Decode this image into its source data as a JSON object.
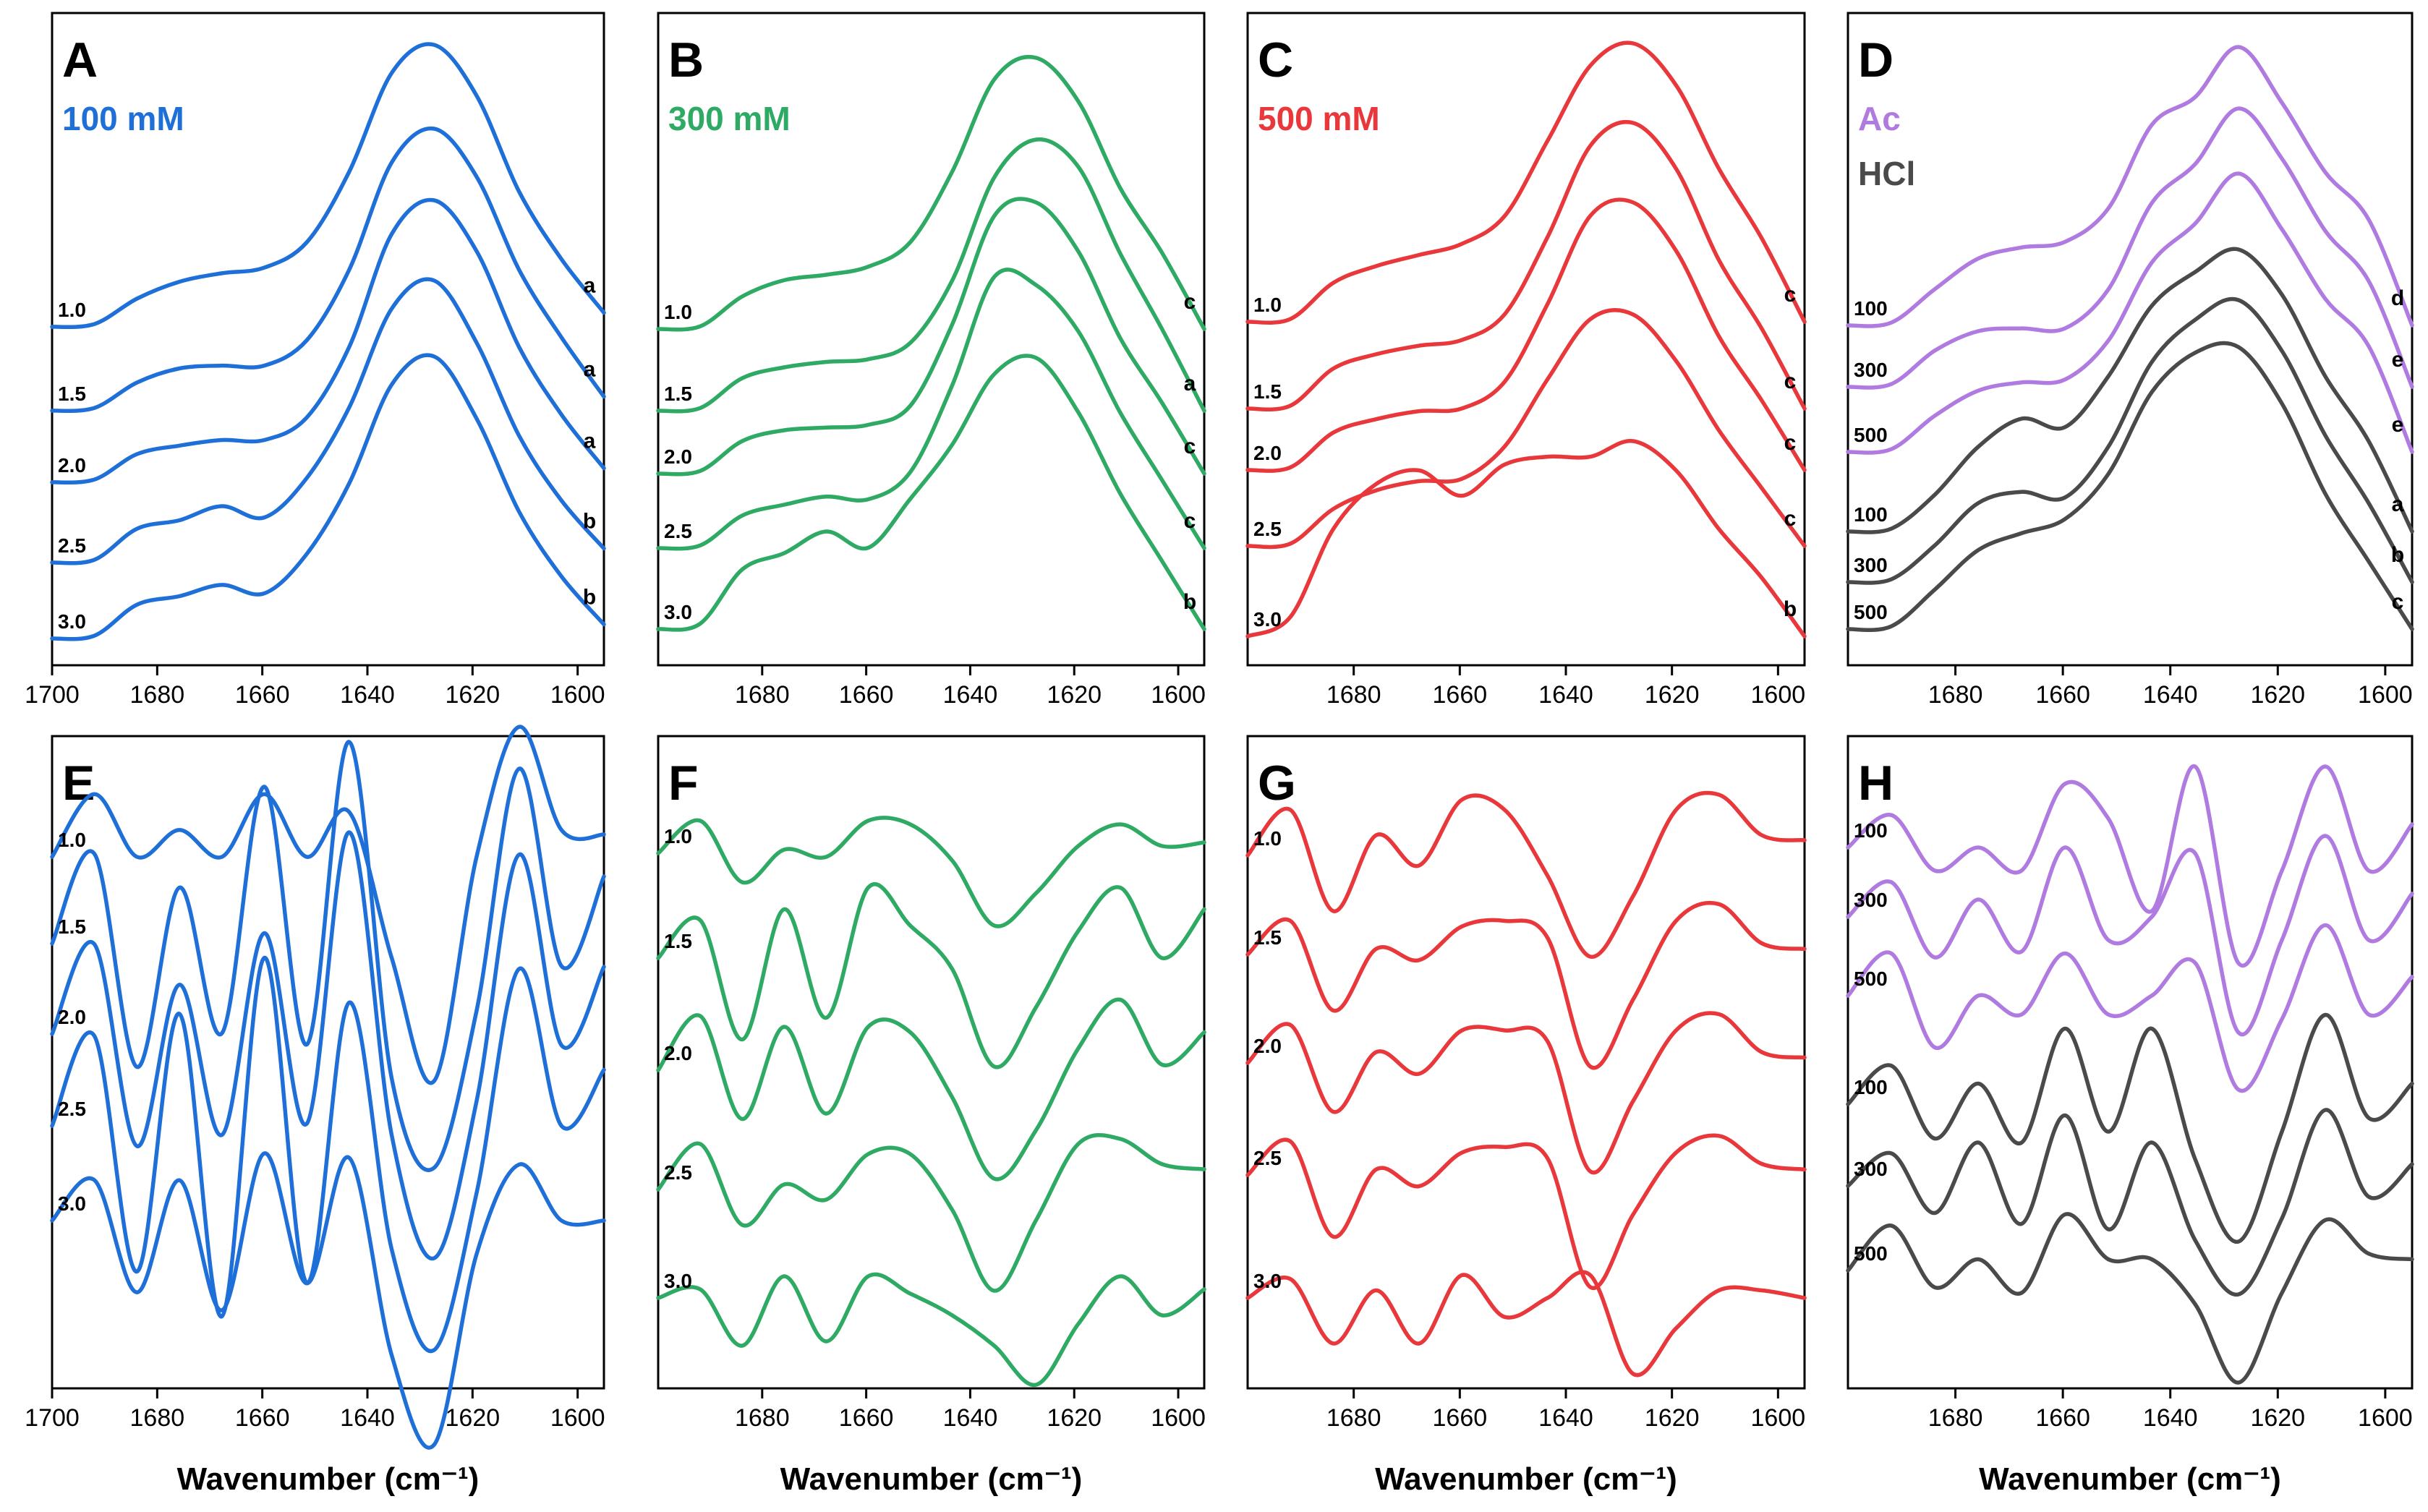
{
  "figure": {
    "xlabel": "Wavenumber (cm⁻¹)",
    "colors": {
      "blue": "#1f6fd8",
      "green": "#2faa64",
      "red": "#e8383b",
      "purple": "#b07be0",
      "gray": "#4a4a4a",
      "axis": "#000000"
    }
  },
  "chart_data": [
    {
      "id": "A",
      "type": "line",
      "title": "A",
      "subtitle": "100 mM",
      "subtitle_color": "blue",
      "xlim": [
        1700,
        1595
      ],
      "xticks": [
        1700,
        1680,
        1660,
        1640,
        1620,
        1600
      ],
      "xticklabels": [
        "1700",
        "1680",
        "1660",
        "1640",
        "1620",
        "1600"
      ],
      "grid": false,
      "series": [
        {
          "name": "1.0",
          "color": "blue",
          "right_label": "a",
          "y": [
            0.0,
            0.01,
            0.1,
            0.16,
            0.19,
            0.21,
            0.3,
            0.55,
            0.9,
            1.0,
            0.82,
            0.48,
            0.24,
            0.05
          ]
        },
        {
          "name": "1.5",
          "color": "blue",
          "right_label": "a",
          "y": [
            0.0,
            0.01,
            0.1,
            0.15,
            0.16,
            0.16,
            0.25,
            0.5,
            0.88,
            1.0,
            0.83,
            0.5,
            0.26,
            0.05
          ]
        },
        {
          "name": "2.0",
          "color": "blue",
          "right_label": "a",
          "y": [
            0.0,
            0.01,
            0.1,
            0.13,
            0.15,
            0.15,
            0.23,
            0.48,
            0.88,
            1.0,
            0.82,
            0.48,
            0.24,
            0.05
          ]
        },
        {
          "name": "2.5",
          "color": "blue",
          "right_label": "b",
          "y": [
            0.0,
            0.01,
            0.12,
            0.15,
            0.2,
            0.16,
            0.3,
            0.55,
            0.9,
            1.0,
            0.78,
            0.45,
            0.22,
            0.05
          ]
        },
        {
          "name": "3.0",
          "color": "blue",
          "right_label": "b",
          "y": [
            0.0,
            0.01,
            0.12,
            0.15,
            0.19,
            0.16,
            0.3,
            0.55,
            0.9,
            1.0,
            0.78,
            0.45,
            0.22,
            0.05
          ]
        }
      ]
    },
    {
      "id": "B",
      "type": "line",
      "title": "B",
      "subtitle": "300 mM",
      "subtitle_color": "green",
      "xlim": [
        1700,
        1595
      ],
      "xticks": [
        1680,
        1660,
        1640,
        1620,
        1600
      ],
      "xticklabels": [
        "1680",
        "1660",
        "1640",
        "1620",
        "1600"
      ],
      "grid": false,
      "series": [
        {
          "name": "1.0",
          "color": "green",
          "right_label": "c",
          "y": [
            0.0,
            0.01,
            0.12,
            0.18,
            0.2,
            0.23,
            0.32,
            0.58,
            0.92,
            1.0,
            0.84,
            0.52,
            0.28,
            0.0
          ]
        },
        {
          "name": "1.5",
          "color": "green",
          "right_label": "a",
          "y": [
            0.0,
            0.01,
            0.12,
            0.16,
            0.18,
            0.19,
            0.25,
            0.48,
            0.86,
            1.0,
            0.9,
            0.58,
            0.3,
            0.0
          ]
        },
        {
          "name": "2.0",
          "color": "green",
          "right_label": "c",
          "y": [
            0.0,
            0.01,
            0.12,
            0.16,
            0.17,
            0.18,
            0.25,
            0.55,
            0.95,
            1.0,
            0.82,
            0.5,
            0.26,
            0.0
          ]
        },
        {
          "name": "2.5",
          "color": "green",
          "right_label": "c",
          "y": [
            0.0,
            0.01,
            0.12,
            0.16,
            0.19,
            0.18,
            0.28,
            0.6,
            1.0,
            0.97,
            0.8,
            0.5,
            0.25,
            0.0
          ]
        },
        {
          "name": "3.0",
          "color": "green",
          "right_label": "b",
          "y": [
            0.0,
            0.02,
            0.22,
            0.28,
            0.36,
            0.3,
            0.48,
            0.68,
            0.94,
            1.0,
            0.8,
            0.5,
            0.25,
            0.0
          ]
        }
      ]
    },
    {
      "id": "C",
      "type": "line",
      "title": "C",
      "subtitle": "500 mM",
      "subtitle_color": "red",
      "xlim": [
        1700,
        1595
      ],
      "xticks": [
        1680,
        1660,
        1640,
        1620,
        1600
      ],
      "xticklabels": [
        "1680",
        "1660",
        "1640",
        "1620",
        "1600"
      ],
      "grid": false,
      "series": [
        {
          "name": "1.0",
          "color": "red",
          "right_label": "c",
          "y": [
            0.0,
            0.01,
            0.14,
            0.2,
            0.24,
            0.28,
            0.38,
            0.65,
            0.92,
            1.0,
            0.85,
            0.55,
            0.3,
            0.0
          ]
        },
        {
          "name": "1.5",
          "color": "red",
          "right_label": "c",
          "y": [
            0.0,
            0.01,
            0.14,
            0.19,
            0.22,
            0.24,
            0.33,
            0.6,
            0.92,
            1.0,
            0.84,
            0.52,
            0.28,
            0.0
          ]
        },
        {
          "name": "2.0",
          "color": "red",
          "right_label": "c",
          "y": [
            0.0,
            0.01,
            0.14,
            0.19,
            0.22,
            0.23,
            0.33,
            0.62,
            0.95,
            1.0,
            0.82,
            0.5,
            0.26,
            0.0
          ]
        },
        {
          "name": "2.5",
          "color": "red",
          "right_label": "c",
          "y": [
            0.0,
            0.01,
            0.16,
            0.24,
            0.28,
            0.29,
            0.43,
            0.72,
            0.98,
            1.0,
            0.8,
            0.5,
            0.25,
            0.0
          ]
        },
        {
          "name": "3.0",
          "color": "red",
          "right_label": "b",
          "y": [
            0.0,
            0.1,
            0.55,
            0.78,
            0.85,
            0.72,
            0.88,
            0.92,
            0.92,
            1.0,
            0.85,
            0.55,
            0.3,
            0.0
          ]
        }
      ]
    },
    {
      "id": "D",
      "type": "line",
      "title": "D",
      "legend": [
        {
          "label": "Ac",
          "color": "purple"
        },
        {
          "label": "HCl",
          "color": "gray"
        }
      ],
      "xlim": [
        1700,
        1595
      ],
      "xticks": [
        1680,
        1660,
        1640,
        1620,
        1600
      ],
      "xticklabels": [
        "1680",
        "1660",
        "1640",
        "1620",
        "1600"
      ],
      "grid": false,
      "series": [
        {
          "name": "100",
          "color": "purple",
          "right_label": "d",
          "y": [
            0.0,
            0.01,
            0.13,
            0.24,
            0.28,
            0.3,
            0.42,
            0.72,
            0.82,
            1.0,
            0.8,
            0.55,
            0.38,
            0.0
          ]
        },
        {
          "name": "300",
          "color": "purple",
          "right_label": "e",
          "y": [
            0.0,
            0.01,
            0.13,
            0.2,
            0.21,
            0.21,
            0.35,
            0.66,
            0.8,
            1.0,
            0.82,
            0.56,
            0.38,
            0.0
          ]
        },
        {
          "name": "500",
          "color": "purple",
          "right_label": "e",
          "y": [
            0.0,
            0.01,
            0.13,
            0.22,
            0.25,
            0.26,
            0.4,
            0.68,
            0.82,
            1.0,
            0.8,
            0.55,
            0.38,
            0.0
          ]
        },
        {
          "name": "100",
          "color": "gray",
          "right_label": "a",
          "y": [
            0.0,
            0.01,
            0.13,
            0.3,
            0.4,
            0.37,
            0.55,
            0.8,
            0.92,
            1.0,
            0.84,
            0.55,
            0.32,
            0.0
          ]
        },
        {
          "name": "300",
          "color": "gray",
          "right_label": "b",
          "y": [
            0.0,
            0.01,
            0.13,
            0.28,
            0.32,
            0.3,
            0.48,
            0.78,
            0.93,
            1.0,
            0.82,
            0.52,
            0.28,
            0.0
          ]
        },
        {
          "name": "500",
          "color": "gray",
          "right_label": "c",
          "y": [
            0.0,
            0.01,
            0.14,
            0.28,
            0.34,
            0.39,
            0.55,
            0.84,
            0.98,
            1.0,
            0.8,
            0.48,
            0.24,
            0.0
          ]
        }
      ]
    },
    {
      "id": "E",
      "type": "line",
      "title": "E",
      "xlim": [
        1700,
        1595
      ],
      "xticks": [
        1700,
        1680,
        1660,
        1640,
        1620,
        1600
      ],
      "xticklabels": [
        "1700",
        "1680",
        "1660",
        "1640",
        "1620",
        "1600"
      ],
      "grid": false,
      "series": [
        {
          "name": "1.0",
          "color": "blue",
          "y": [
            0.0,
            0.28,
            0.0,
            0.12,
            0.0,
            0.28,
            0.0,
            0.2,
            -0.45,
            -1.0,
            0.0,
            0.58,
            0.12,
            0.1
          ]
        },
        {
          "name": "1.5",
          "color": "blue",
          "y": [
            0.0,
            0.4,
            -0.55,
            0.25,
            -0.4,
            0.7,
            -0.45,
            0.9,
            -0.6,
            -1.0,
            -0.3,
            0.78,
            -0.1,
            0.3
          ]
        },
        {
          "name": "2.0",
          "color": "blue",
          "y": [
            0.0,
            0.4,
            -0.5,
            0.22,
            -0.45,
            0.45,
            -0.4,
            0.9,
            -0.45,
            -1.0,
            -0.3,
            0.8,
            -0.05,
            0.3
          ]
        },
        {
          "name": "2.5",
          "color": "blue",
          "y": [
            0.0,
            0.4,
            -0.65,
            0.5,
            -0.85,
            0.75,
            -0.7,
            0.55,
            -0.55,
            -1.0,
            -0.3,
            0.7,
            0.0,
            0.25
          ]
        },
        {
          "name": "3.0",
          "color": "blue",
          "y": [
            0.0,
            0.18,
            -0.32,
            0.18,
            -0.4,
            0.3,
            -0.28,
            0.28,
            -0.6,
            -1.0,
            -0.15,
            0.25,
            0.0,
            0.0
          ]
        }
      ]
    },
    {
      "id": "F",
      "type": "line",
      "title": "F",
      "xlim": [
        1700,
        1595
      ],
      "xticks": [
        1680,
        1660,
        1640,
        1620,
        1600
      ],
      "xticklabels": [
        "1680",
        "1660",
        "1640",
        "1620",
        "1600"
      ],
      "grid": false,
      "series": [
        {
          "name": "1.0",
          "color": "green",
          "y": [
            0.0,
            0.45,
            -0.4,
            0.05,
            -0.05,
            0.45,
            0.4,
            -0.1,
            -1.0,
            -0.55,
            0.1,
            0.4,
            0.1,
            0.15
          ]
        },
        {
          "name": "1.5",
          "color": "green",
          "y": [
            0.0,
            0.35,
            -0.75,
            0.45,
            -0.55,
            0.65,
            0.3,
            -0.1,
            -1.0,
            -0.45,
            0.25,
            0.65,
            0.0,
            0.45
          ]
        },
        {
          "name": "2.0",
          "color": "green",
          "y": [
            0.0,
            0.5,
            -0.45,
            0.4,
            -0.4,
            0.4,
            0.35,
            -0.25,
            -1.0,
            -0.55,
            0.2,
            0.65,
            0.05,
            0.35
          ]
        },
        {
          "name": "2.5",
          "color": "green",
          "y": [
            0.0,
            0.45,
            -0.35,
            0.05,
            -0.1,
            0.35,
            0.35,
            -0.2,
            -1.0,
            -0.3,
            0.45,
            0.5,
            0.25,
            0.2
          ]
        },
        {
          "name": "3.0",
          "color": "green",
          "y": [
            0.0,
            0.1,
            -0.55,
            0.25,
            -0.5,
            0.25,
            0.05,
            -0.2,
            -0.55,
            -1.0,
            -0.3,
            0.25,
            -0.2,
            0.1
          ]
        }
      ]
    },
    {
      "id": "G",
      "type": "line",
      "title": "G",
      "xlim": [
        1700,
        1595
      ],
      "xticks": [
        1680,
        1660,
        1640,
        1620,
        1600
      ],
      "xticklabels": [
        "1680",
        "1660",
        "1640",
        "1620",
        "1600"
      ],
      "grid": false,
      "series": [
        {
          "name": "1.0",
          "color": "red",
          "y": [
            0.0,
            0.45,
            -0.55,
            0.2,
            -0.1,
            0.55,
            0.45,
            -0.2,
            -1.0,
            -0.4,
            0.45,
            0.6,
            0.2,
            0.15
          ]
        },
        {
          "name": "1.5",
          "color": "red",
          "y": [
            0.0,
            0.3,
            -0.5,
            0.05,
            -0.05,
            0.25,
            0.3,
            0.15,
            -1.0,
            -0.4,
            0.3,
            0.45,
            0.1,
            0.05
          ]
        },
        {
          "name": "2.0",
          "color": "red",
          "y": [
            0.0,
            0.35,
            -0.45,
            0.1,
            -0.1,
            0.3,
            0.3,
            0.2,
            -1.0,
            -0.35,
            0.3,
            0.45,
            0.1,
            0.05
          ]
        },
        {
          "name": "2.5",
          "color": "red",
          "y": [
            0.0,
            0.3,
            -0.55,
            0.05,
            -0.1,
            0.2,
            0.25,
            0.15,
            -1.0,
            -0.35,
            0.2,
            0.35,
            0.1,
            0.05
          ]
        },
        {
          "name": "3.0",
          "color": "red",
          "y": [
            0.0,
            0.25,
            -0.6,
            0.1,
            -0.6,
            0.3,
            -0.25,
            0.0,
            0.3,
            -1.0,
            -0.4,
            0.1,
            0.1,
            0.0
          ]
        }
      ]
    },
    {
      "id": "H",
      "type": "line",
      "title": "H",
      "xlim": [
        1700,
        1595
      ],
      "xticks": [
        1680,
        1660,
        1640,
        1620,
        1600
      ],
      "xticklabels": [
        "1680",
        "1660",
        "1640",
        "1620",
        "1600"
      ],
      "grid": false,
      "series": [
        {
          "name": "100",
          "color": "purple",
          "y": [
            0.0,
            0.28,
            -0.2,
            0.0,
            -0.2,
            0.55,
            0.25,
            -0.55,
            0.7,
            -1.0,
            -0.2,
            0.7,
            -0.2,
            0.2
          ]
        },
        {
          "name": "300",
          "color": "purple",
          "y": [
            0.0,
            0.3,
            -0.35,
            0.15,
            -0.3,
            0.6,
            -0.2,
            0.0,
            0.55,
            -1.0,
            -0.2,
            0.7,
            -0.2,
            0.2
          ]
        },
        {
          "name": "500",
          "color": "purple",
          "y": [
            0.0,
            0.45,
            -0.55,
            0.0,
            -0.2,
            0.45,
            -0.2,
            0.0,
            0.35,
            -1.0,
            -0.25,
            0.75,
            -0.2,
            0.2
          ]
        },
        {
          "name": "100",
          "color": "gray",
          "y": [
            0.0,
            0.28,
            -0.25,
            0.15,
            -0.28,
            0.55,
            -0.2,
            0.55,
            -0.4,
            -1.0,
            -0.2,
            0.65,
            -0.1,
            0.15
          ]
        },
        {
          "name": "300",
          "color": "gray",
          "y": [
            0.0,
            0.3,
            -0.25,
            0.4,
            -0.35,
            0.65,
            -0.4,
            0.4,
            -0.5,
            -1.0,
            -0.3,
            0.7,
            -0.1,
            0.2
          ]
        },
        {
          "name": "500",
          "color": "gray",
          "y": [
            0.0,
            0.4,
            -0.15,
            0.1,
            -0.2,
            0.5,
            0.1,
            0.1,
            -0.3,
            -1.0,
            -0.2,
            0.45,
            0.15,
            0.1
          ]
        }
      ]
    }
  ]
}
